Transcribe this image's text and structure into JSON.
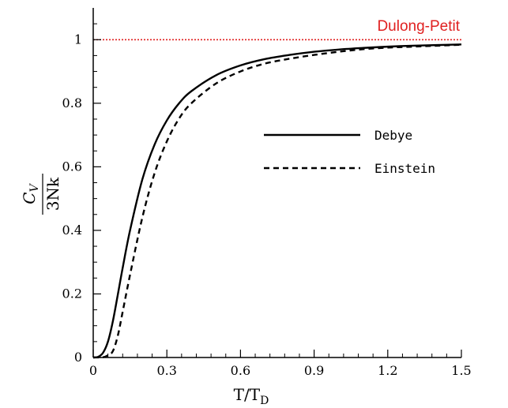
{
  "chart_data": {
    "type": "line",
    "xlabel": "T/T",
    "xlabel_sub": "D",
    "ylabel_numerator": "C",
    "ylabel_numerator_sub": "V",
    "ylabel_denominator": "3Nk",
    "xlim": [
      0,
      1.5
    ],
    "ylim": [
      0,
      1.1
    ],
    "xticks": [
      0,
      0.3,
      0.6,
      0.9,
      1.2,
      1.5
    ],
    "xtick_labels": [
      "0",
      "0.3",
      "0.6",
      "0.9",
      "1.2",
      "1.5"
    ],
    "yticks": [
      0,
      0.2,
      0.4,
      0.6,
      0.8,
      1
    ],
    "ytick_labels": [
      "0",
      "0.2",
      "0.4",
      "0.6",
      "0.8",
      "1"
    ],
    "grid": false,
    "legend_placement": "center-right",
    "reference_line": {
      "label": "Dulong-Petit",
      "y": 1,
      "color": "#e02020"
    },
    "series": [
      {
        "name": "Debye",
        "style": "solid",
        "color": "#000000",
        "x": [
          0,
          0.02,
          0.04,
          0.06,
          0.08,
          0.1,
          0.12,
          0.15,
          0.2,
          0.25,
          0.3,
          0.35,
          0.4,
          0.5,
          0.6,
          0.7,
          0.8,
          0.9,
          1.0,
          1.1,
          1.2,
          1.3,
          1.4,
          1.5
        ],
        "y": [
          0,
          0.0019,
          0.015,
          0.05,
          0.114,
          0.197,
          0.282,
          0.4,
          0.56,
          0.67,
          0.746,
          0.8,
          0.838,
          0.888,
          0.919,
          0.939,
          0.952,
          0.962,
          0.969,
          0.974,
          0.978,
          0.981,
          0.983,
          0.985
        ]
      },
      {
        "name": "Einstein",
        "style": "dashed",
        "color": "#000000",
        "x": [
          0,
          0.04,
          0.06,
          0.08,
          0.1,
          0.12,
          0.15,
          0.2,
          0.25,
          0.3,
          0.35,
          0.4,
          0.5,
          0.6,
          0.7,
          0.8,
          0.9,
          1.0,
          1.1,
          1.2,
          1.3,
          1.4,
          1.5
        ],
        "y": [
          0,
          0.0009,
          0.007,
          0.02,
          0.068,
          0.144,
          0.26,
          0.44,
          0.58,
          0.68,
          0.752,
          0.8,
          0.862,
          0.9,
          0.925,
          0.94,
          0.952,
          0.962,
          0.97,
          0.975,
          0.978,
          0.981,
          0.984
        ]
      }
    ]
  }
}
